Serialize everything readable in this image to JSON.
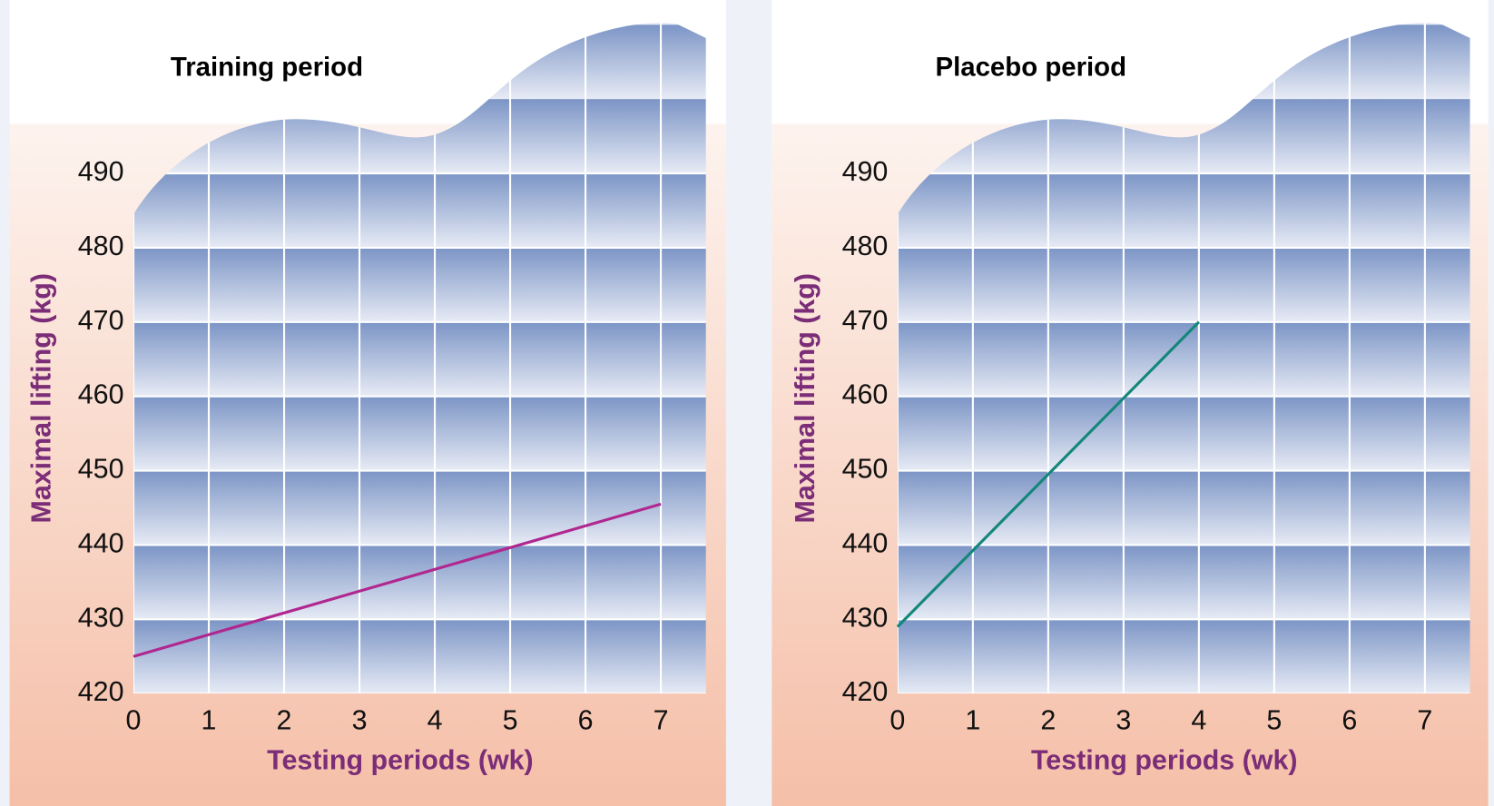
{
  "chart_data": [
    {
      "type": "line",
      "title": "Training period",
      "x_label": "Testing periods (wk)",
      "y_label": "Maximal lifting (kg)",
      "x": [
        0,
        7
      ],
      "series": [
        {
          "color": "#b0278f",
          "values": [
            425,
            445.5
          ]
        }
      ],
      "xlim": [
        0,
        7.6
      ],
      "xticks": [
        0,
        1,
        2,
        3,
        4,
        5,
        6,
        7
      ],
      "ylim": [
        420,
        510
      ],
      "yticks": [
        420,
        430,
        440,
        450,
        460,
        470,
        480,
        490
      ],
      "grid": true
    },
    {
      "type": "line",
      "title": "Placebo period",
      "x_label": "Testing periods (wk)",
      "y_label": "Maximal lifting (kg)",
      "x": [
        0,
        4
      ],
      "series": [
        {
          "color": "#14877a",
          "values": [
            429,
            470
          ]
        }
      ],
      "xlim": [
        0,
        7.6
      ],
      "xticks": [
        0,
        1,
        2,
        3,
        4,
        5,
        6,
        7
      ],
      "ylim": [
        420,
        510
      ],
      "yticks": [
        420,
        430,
        440,
        450,
        460,
        470,
        480,
        490
      ],
      "grid": true
    }
  ]
}
